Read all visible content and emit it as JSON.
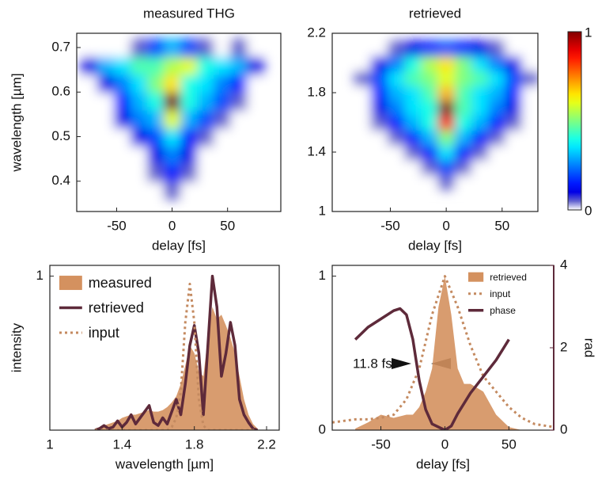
{
  "chart_data": [
    {
      "type": "heatmap",
      "title": "measured THG",
      "xlabel": "delay [fs]",
      "ylabel": "wavelength [µm]",
      "xlim": [
        -86,
        98
      ],
      "ylim": [
        0.332,
        0.732
      ],
      "xticks": [
        -50,
        0,
        50
      ],
      "yticks": [
        0.4,
        0.5,
        0.6,
        0.7
      ],
      "x": [
        -75,
        -60,
        -45,
        -30,
        -15,
        0,
        15,
        30,
        45,
        60,
        75
      ],
      "y": [
        0.38,
        0.42,
        0.46,
        0.5,
        0.54,
        0.58,
        0.62,
        0.66,
        0.7
      ],
      "z": [
        [
          0,
          0,
          0,
          0,
          0,
          0.05,
          0,
          0,
          0,
          0,
          0
        ],
        [
          0,
          0,
          0,
          0,
          0.05,
          0.15,
          0.05,
          0,
          0,
          0,
          0
        ],
        [
          0,
          0,
          0,
          0,
          0.1,
          0.25,
          0.1,
          0,
          0,
          0,
          0
        ],
        [
          0,
          0,
          0,
          0.1,
          0.2,
          0.35,
          0.15,
          0.05,
          0,
          0,
          0
        ],
        [
          0,
          0,
          0.1,
          0.25,
          0.3,
          0.6,
          0.3,
          0.2,
          0.05,
          0,
          0
        ],
        [
          0,
          0,
          0.15,
          0.3,
          0.4,
          1,
          0.4,
          0.3,
          0.2,
          0.05,
          0
        ],
        [
          0,
          0.1,
          0.25,
          0.35,
          0.5,
          0.65,
          0.4,
          0.35,
          0.25,
          0.15,
          0
        ],
        [
          0.1,
          0.3,
          0.35,
          0.45,
          0.45,
          0.55,
          0.6,
          0.4,
          0.35,
          0.3,
          0.1
        ],
        [
          0,
          0,
          0,
          0.05,
          0.2,
          0.3,
          0.2,
          0.05,
          0,
          0.05,
          0
        ]
      ]
    },
    {
      "type": "heatmap",
      "title": "retrieved",
      "xlabel": "delay [fs]",
      "xlim": [
        -102,
        82
      ],
      "ylim": [
        1,
        2.2
      ],
      "xticks": [
        -50,
        0,
        50
      ],
      "yticks": [
        1,
        1.4,
        1.8,
        2.2
      ],
      "x": [
        -75,
        -60,
        -45,
        -30,
        -15,
        0,
        15,
        30,
        45,
        60,
        75
      ],
      "y": [
        1.2,
        1.3,
        1.4,
        1.5,
        1.6,
        1.7,
        1.8,
        1.9,
        2.0,
        2.1
      ],
      "z": [
        [
          0,
          0,
          0,
          0,
          0,
          0.05,
          0,
          0,
          0,
          0,
          0
        ],
        [
          0,
          0,
          0,
          0,
          0.05,
          0.2,
          0.05,
          0,
          0,
          0,
          0
        ],
        [
          0,
          0,
          0,
          0.05,
          0.15,
          0.35,
          0.15,
          0.05,
          0,
          0,
          0
        ],
        [
          0,
          0,
          0.05,
          0.15,
          0.3,
          0.5,
          0.3,
          0.15,
          0.05,
          0,
          0
        ],
        [
          0,
          0.05,
          0.15,
          0.3,
          0.4,
          0.85,
          0.4,
          0.3,
          0.15,
          0.05,
          0
        ],
        [
          0,
          0.1,
          0.25,
          0.35,
          0.4,
          1,
          0.45,
          0.35,
          0.25,
          0.1,
          0
        ],
        [
          0,
          0.15,
          0.3,
          0.35,
          0.45,
          0.7,
          0.45,
          0.35,
          0.3,
          0.15,
          0
        ],
        [
          0.05,
          0.2,
          0.35,
          0.45,
          0.5,
          0.6,
          0.5,
          0.45,
          0.35,
          0.2,
          0.05
        ],
        [
          0,
          0.1,
          0.25,
          0.4,
          0.55,
          0.65,
          0.5,
          0.35,
          0.25,
          0.1,
          0
        ],
        [
          0,
          0,
          0.05,
          0.1,
          0.15,
          0.2,
          0.15,
          0.1,
          0.05,
          0,
          0
        ]
      ],
      "colorbar": {
        "lim": [
          0,
          1
        ],
        "ticks": [
          0,
          1
        ]
      }
    },
    {
      "type": "line",
      "xlabel": "wavelength [µm]",
      "ylabel": "intensity",
      "xlim": [
        1,
        2.27
      ],
      "ylim": [
        0,
        1.07
      ],
      "xticks": [
        1,
        1.4,
        1.8,
        2.2
      ],
      "yticks": [
        1
      ],
      "legend": "upper left",
      "x": [
        1.25,
        1.275,
        1.3,
        1.325,
        1.35,
        1.375,
        1.4,
        1.425,
        1.45,
        1.475,
        1.5,
        1.525,
        1.55,
        1.575,
        1.6,
        1.625,
        1.65,
        1.675,
        1.7,
        1.725,
        1.75,
        1.775,
        1.8,
        1.825,
        1.85,
        1.875,
        1.9,
        1.925,
        1.95,
        1.975,
        2.0,
        2.025,
        2.05,
        2.075,
        2.1,
        2.125,
        2.15
      ],
      "series": [
        {
          "name": "measured",
          "style": "area",
          "color": "#d4915f",
          "values": [
            0.01,
            0.02,
            0.03,
            0.04,
            0.05,
            0.06,
            0.08,
            0.09,
            0.1,
            0.1,
            0.11,
            0.12,
            0.13,
            0.12,
            0.12,
            0.13,
            0.15,
            0.18,
            0.22,
            0.3,
            0.42,
            0.55,
            0.5,
            0.38,
            0.35,
            0.6,
            0.8,
            0.72,
            0.75,
            0.68,
            0.6,
            0.5,
            0.35,
            0.2,
            0.1,
            0.04,
            0.01
          ]
        },
        {
          "name": "retrieved",
          "style": "line",
          "color": "#5e2a3a",
          "values": [
            0,
            0.01,
            0.03,
            0.01,
            0.02,
            0.06,
            0.02,
            0.05,
            0.1,
            0.04,
            0.08,
            0.12,
            0.16,
            0.05,
            0.03,
            0.08,
            0.04,
            0.12,
            0.2,
            0.1,
            0.3,
            0.55,
            0.68,
            0.5,
            0.1,
            0.55,
            1.0,
            0.8,
            0.35,
            0.5,
            0.7,
            0.55,
            0.2,
            0.1,
            0.05,
            0.01,
            0
          ]
        },
        {
          "name": "input",
          "style": "dotted",
          "color": "#c48a60",
          "values": [
            0,
            0,
            0,
            0,
            0,
            0,
            0,
            0,
            0,
            0,
            0,
            0,
            0,
            0,
            0,
            0,
            0,
            0.02,
            0.08,
            0.25,
            0.7,
            0.95,
            0.7,
            0.2,
            0.03,
            0,
            0,
            0,
            0,
            0,
            0,
            0,
            0,
            0,
            0,
            0,
            0
          ]
        }
      ]
    },
    {
      "type": "line",
      "xlabel": "delay [fs]",
      "y2label": "rad",
      "xlim": [
        -88,
        85
      ],
      "ylim": [
        0,
        1.07
      ],
      "y2lim": [
        0,
        4
      ],
      "xticks": [
        -50,
        0,
        50
      ],
      "yticks": [
        0,
        1
      ],
      "y2ticks": [
        0,
        2,
        4
      ],
      "legend": "upper right",
      "annotation": "11.8 fs",
      "series": [
        {
          "name": "retrieved",
          "style": "area",
          "color": "#d4915f",
          "x": [
            -70,
            -60,
            -50,
            -40,
            -30,
            -25,
            -20,
            -15,
            -10,
            -5,
            0,
            5,
            10,
            15,
            20,
            30,
            40,
            50,
            60
          ],
          "values": [
            0.01,
            0.05,
            0.1,
            0.08,
            0.1,
            0.1,
            0.15,
            0.25,
            0.4,
            0.8,
            1.0,
            0.75,
            0.4,
            0.3,
            0.3,
            0.25,
            0.1,
            0.02,
            0
          ]
        },
        {
          "name": "input",
          "style": "dotted",
          "color": "#c48a60",
          "x": [
            -88,
            -70,
            -60,
            -50,
            -40,
            -30,
            -20,
            -10,
            0,
            10,
            20,
            30,
            40,
            50,
            60,
            70,
            85
          ],
          "values": [
            0.05,
            0.07,
            0.07,
            0.08,
            0.1,
            0.2,
            0.4,
            0.75,
            1.0,
            0.8,
            0.55,
            0.35,
            0.25,
            0.15,
            0.08,
            0.04,
            0.02
          ]
        },
        {
          "name": "phase",
          "style": "line",
          "color": "#5e2a3a",
          "axis": "y2",
          "x": [
            -70,
            -60,
            -50,
            -40,
            -35,
            -30,
            -25,
            -20,
            -15,
            -10,
            0,
            5,
            10,
            20,
            30,
            40,
            50
          ],
          "values": [
            2.2,
            2.5,
            2.7,
            2.9,
            2.95,
            2.8,
            2.2,
            1.2,
            0.5,
            0.15,
            0,
            0.1,
            0.4,
            0.9,
            1.3,
            1.7,
            2.2
          ]
        }
      ]
    }
  ]
}
